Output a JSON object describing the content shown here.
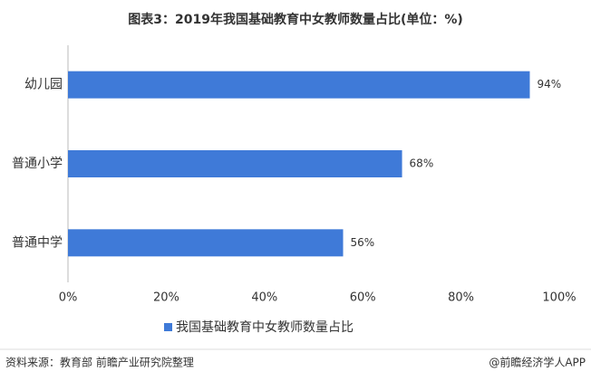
{
  "chart_data": {
    "type": "hbar",
    "title": "图表3：2019年我国基础教育中女教师数量占比(单位：%)",
    "categories": [
      "幼儿园",
      "普通小学",
      "普通中学"
    ],
    "series": [
      {
        "name": "我国基础教育中女教师数量占比",
        "color": "#3f7ad8",
        "values": [
          94,
          68,
          56
        ],
        "value_labels": [
          "94%",
          "68%",
          "56%"
        ]
      }
    ],
    "xlim": [
      0,
      100
    ],
    "xticks": [
      {
        "value": 0,
        "label": "0%"
      },
      {
        "value": 20,
        "label": "20%"
      },
      {
        "value": 40,
        "label": "40%"
      },
      {
        "value": 60,
        "label": "60%"
      },
      {
        "value": 80,
        "label": "80%"
      },
      {
        "value": 100,
        "label": "100%"
      }
    ],
    "legend": "bottom",
    "source": "资料来源：教育部 前瞻产业研究院整理",
    "credit": "@前瞻经济学人APP"
  }
}
